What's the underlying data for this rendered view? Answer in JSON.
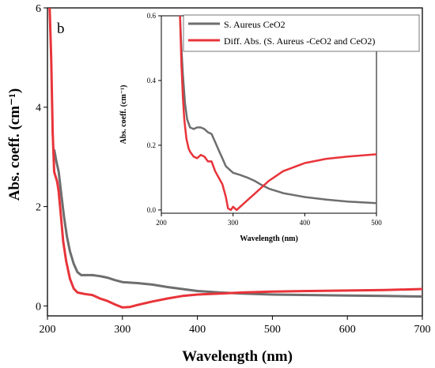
{
  "chart_data": [
    {
      "id": "main",
      "type": "line",
      "panel_label": "b",
      "xlabel": "Wavelength (nm)",
      "ylabel": "Abs. coeff. (cm⁻¹)",
      "xlim": [
        200,
        700
      ],
      "ylim": [
        -0.2,
        6
      ],
      "xticks": [
        200,
        300,
        400,
        500,
        600,
        700
      ],
      "yticks": [
        0,
        2,
        4,
        6
      ],
      "grid": false,
      "series": [
        {
          "name": "S. Aureus CeO2",
          "color": "#6e6e6e",
          "x": [
            209,
            212,
            215,
            218,
            222,
            226,
            230,
            235,
            240,
            245,
            250,
            260,
            270,
            280,
            290,
            300,
            320,
            340,
            360,
            380,
            400,
            430,
            460,
            500,
            550,
            600,
            650,
            700
          ],
          "y": [
            3.15,
            2.9,
            2.7,
            2.3,
            1.8,
            1.4,
            1.1,
            0.85,
            0.68,
            0.62,
            0.62,
            0.62,
            0.6,
            0.57,
            0.52,
            0.48,
            0.46,
            0.43,
            0.38,
            0.34,
            0.3,
            0.27,
            0.25,
            0.23,
            0.22,
            0.21,
            0.2,
            0.19
          ]
        },
        {
          "name": "Diff. Abs. (S. Aureus -CeO2 and CeO2)",
          "color": "#e8343a",
          "x": [
            203,
            205,
            207,
            209,
            211,
            213,
            215,
            218,
            221,
            225,
            230,
            235,
            240,
            250,
            260,
            270,
            280,
            290,
            300,
            310,
            320,
            340,
            360,
            380,
            400,
            430,
            460,
            500,
            550,
            600,
            650,
            700
          ],
          "y": [
            6.0,
            5.0,
            3.5,
            2.7,
            2.6,
            2.5,
            2.3,
            1.8,
            1.3,
            0.9,
            0.55,
            0.35,
            0.27,
            0.24,
            0.22,
            0.15,
            0.1,
            0.03,
            -0.03,
            -0.02,
            0.02,
            0.09,
            0.15,
            0.2,
            0.23,
            0.25,
            0.27,
            0.29,
            0.3,
            0.31,
            0.32,
            0.34
          ]
        }
      ]
    },
    {
      "id": "inset",
      "type": "line",
      "xlabel": "Wavelength (nm)",
      "ylabel": "Abs. coeff. (cm⁻¹)",
      "xlim": [
        200,
        500
      ],
      "ylim": [
        -0.01,
        0.6
      ],
      "xticks": [
        200,
        300,
        400,
        500
      ],
      "yticks": [
        0.0,
        0.2,
        0.4,
        0.6
      ],
      "ytick_labels": [
        "0.0",
        "0.2",
        "0.4",
        "0.6"
      ],
      "legend_position": "top-right",
      "grid": false,
      "series": [
        {
          "name": "S. Aureus CeO2",
          "color": "#6e6e6e",
          "x": [
            226,
            228,
            230,
            233,
            236,
            240,
            245,
            250,
            255,
            260,
            265,
            270,
            275,
            280,
            285,
            290,
            300,
            310,
            320,
            330,
            340,
            350,
            370,
            400,
            430,
            460,
            500
          ],
          "y": [
            0.6,
            0.5,
            0.42,
            0.33,
            0.28,
            0.255,
            0.25,
            0.255,
            0.255,
            0.25,
            0.24,
            0.235,
            0.21,
            0.185,
            0.16,
            0.135,
            0.115,
            0.108,
            0.1,
            0.09,
            0.077,
            0.066,
            0.052,
            0.04,
            0.032,
            0.026,
            0.021
          ]
        },
        {
          "name": "Diff. Abs. (S. Aureus -CeO2 and CeO2)",
          "color": "#e8343a",
          "x": [
            226,
            228,
            230,
            232,
            235,
            238,
            240,
            245,
            250,
            255,
            260,
            265,
            270,
            275,
            280,
            285,
            290,
            293,
            297,
            300,
            305,
            310,
            320,
            330,
            340,
            350,
            370,
            400,
            430,
            460,
            500
          ],
          "y": [
            0.6,
            0.45,
            0.35,
            0.28,
            0.22,
            0.19,
            0.18,
            0.165,
            0.16,
            0.17,
            0.165,
            0.15,
            0.15,
            0.12,
            0.1,
            0.08,
            0.04,
            0.005,
            0.0,
            0.01,
            0.0,
            0.01,
            0.03,
            0.05,
            0.07,
            0.09,
            0.12,
            0.145,
            0.158,
            0.165,
            0.172
          ]
        }
      ]
    }
  ]
}
